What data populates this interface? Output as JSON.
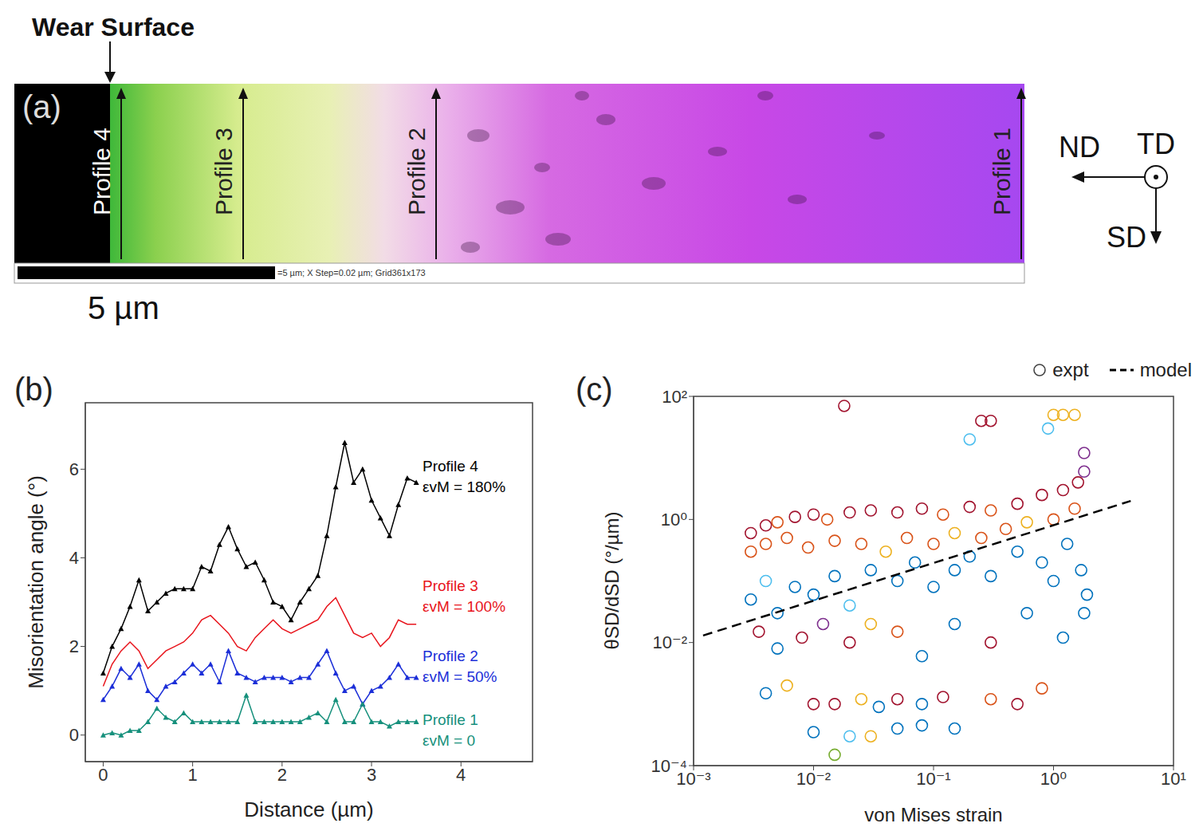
{
  "panel_a": {
    "label": "(a)",
    "title": "Wear Surface",
    "profiles": [
      "Profile 4",
      "Profile 3",
      "Profile 2",
      "Profile 1"
    ],
    "scale_bar": "5 µm",
    "scale_bar_note": "=5 µm; X Step=0.02 µm; Grid361x173",
    "directions": [
      "ND",
      "TD",
      "SD"
    ]
  },
  "chart_data": [
    {
      "panel": "(b)",
      "type": "line",
      "x_label": "Distance (µm)",
      "y_label": "Misorientation angle (°)",
      "x": [
        0,
        0.1,
        0.2,
        0.3,
        0.4,
        0.5,
        0.6,
        0.7,
        0.8,
        0.9,
        1.0,
        1.1,
        1.2,
        1.3,
        1.4,
        1.5,
        1.6,
        1.7,
        1.8,
        1.9,
        2.0,
        2.1,
        2.2,
        2.3,
        2.4,
        2.5,
        2.6,
        2.7,
        2.8,
        2.9,
        3.0,
        3.1,
        3.2,
        3.3,
        3.4,
        3.5
      ],
      "series": [
        {
          "name": "Profile 4",
          "annotation": "εvM = 180%",
          "color": "#000000",
          "marker": "triangle",
          "values": [
            1.4,
            2.0,
            2.4,
            2.9,
            3.5,
            2.8,
            3.0,
            3.2,
            3.3,
            3.3,
            3.3,
            3.8,
            3.7,
            4.3,
            4.7,
            4.2,
            3.8,
            3.9,
            3.5,
            3.0,
            2.9,
            2.6,
            3.0,
            3.3,
            3.6,
            4.5,
            5.6,
            6.6,
            5.7,
            6.0,
            5.3,
            4.9,
            4.5,
            5.2,
            5.8,
            5.7
          ]
        },
        {
          "name": "Profile 3",
          "annotation": "εvM = 100%",
          "color": "#e8141c",
          "marker": "none",
          "values": [
            1.1,
            1.6,
            1.9,
            2.1,
            1.9,
            1.5,
            1.7,
            1.9,
            2.0,
            2.1,
            2.3,
            2.6,
            2.7,
            2.5,
            2.3,
            2.0,
            1.9,
            2.2,
            2.4,
            2.6,
            2.4,
            2.3,
            2.4,
            2.5,
            2.6,
            2.9,
            3.1,
            2.7,
            2.3,
            2.2,
            2.3,
            2.0,
            2.2,
            2.6,
            2.5,
            2.5
          ]
        },
        {
          "name": "Profile 2",
          "annotation": "εvM = 50%",
          "color": "#1c2fd8",
          "marker": "triangle",
          "values": [
            0.8,
            1.1,
            1.5,
            1.3,
            1.6,
            1.0,
            0.8,
            1.1,
            1.2,
            1.4,
            1.6,
            1.4,
            1.6,
            1.2,
            1.9,
            1.4,
            1.3,
            1.2,
            1.3,
            1.3,
            1.3,
            1.2,
            1.3,
            1.3,
            1.6,
            1.9,
            1.4,
            1.0,
            1.1,
            0.7,
            1.0,
            1.1,
            1.3,
            1.6,
            1.3,
            1.3
          ]
        },
        {
          "name": "Profile 1",
          "annotation": "εvM = 0",
          "color": "#16907c",
          "marker": "triangle",
          "values": [
            0.0,
            0.05,
            0.0,
            0.1,
            0.1,
            0.3,
            0.6,
            0.4,
            0.3,
            0.5,
            0.3,
            0.3,
            0.3,
            0.3,
            0.3,
            0.3,
            0.9,
            0.3,
            0.3,
            0.3,
            0.3,
            0.3,
            0.3,
            0.4,
            0.5,
            0.3,
            0.8,
            0.3,
            0.3,
            0.7,
            0.3,
            0.3,
            0.2,
            0.3,
            0.3,
            0.3
          ]
        }
      ],
      "xlim": [
        -0.2,
        4.8
      ],
      "xticks": [
        0,
        1,
        2,
        3,
        4
      ],
      "ylim": [
        -0.6,
        7.5
      ],
      "yticks": [
        0,
        2,
        4,
        6
      ]
    },
    {
      "panel": "(c)",
      "type": "scatter",
      "log": true,
      "legend": "top right",
      "x_label": "von Mises strain",
      "y_label": "θSD/dSD (°/µm)",
      "series": [
        {
          "name": "expt",
          "type": "scatter",
          "marker": "circle",
          "x": [
            0.01,
            0.02,
            0.03,
            0.015,
            0.05,
            0.08,
            0.15,
            0.004,
            0.006,
            0.01,
            0.015,
            0.025,
            0.035,
            0.05,
            0.08,
            0.12,
            0.3,
            0.5,
            0.8,
            0.0035,
            0.005,
            0.008,
            0.012,
            0.02,
            0.03,
            0.05,
            0.08,
            0.15,
            0.3,
            0.6,
            1.2,
            1.8,
            0.003,
            0.004,
            0.005,
            0.007,
            0.01,
            0.015,
            0.02,
            0.03,
            0.05,
            0.07,
            0.1,
            0.15,
            0.2,
            0.3,
            0.5,
            0.8,
            1.0,
            1.3,
            1.7,
            1.9,
            0.003,
            0.004,
            0.006,
            0.009,
            0.015,
            0.025,
            0.04,
            0.06,
            0.1,
            0.15,
            0.25,
            0.4,
            0.6,
            1.0,
            1.5,
            0.003,
            0.004,
            0.005,
            0.007,
            0.01,
            0.013,
            0.02,
            0.03,
            0.05,
            0.08,
            0.12,
            0.2,
            0.3,
            0.5,
            0.8,
            1.2,
            1.6,
            1.8,
            0.018,
            0.25,
            0.3,
            0.2,
            0.9,
            1.0,
            1.2,
            1.5,
            1.8
          ],
          "values": [
            0.00035,
            0.0003,
            0.0003,
            0.00015,
            0.0004,
            0.00045,
            0.0004,
            0.0015,
            0.002,
            0.001,
            0.001,
            0.0012,
            0.0009,
            0.0012,
            0.001,
            0.0013,
            0.0012,
            0.001,
            0.0018,
            0.015,
            0.008,
            0.012,
            0.02,
            0.01,
            0.02,
            0.015,
            0.006,
            0.02,
            0.01,
            0.03,
            0.012,
            0.03,
            0.05,
            0.1,
            0.03,
            0.08,
            0.06,
            0.12,
            0.04,
            0.15,
            0.1,
            0.2,
            0.08,
            0.15,
            0.25,
            0.12,
            0.3,
            0.2,
            0.1,
            0.4,
            0.15,
            0.06,
            0.3,
            0.4,
            0.5,
            0.35,
            0.45,
            0.4,
            0.3,
            0.5,
            0.4,
            0.6,
            0.5,
            0.7,
            0.9,
            1.0,
            1.5,
            0.6,
            0.8,
            0.9,
            1.1,
            1.2,
            1.0,
            1.3,
            1.4,
            1.3,
            1.5,
            1.2,
            1.6,
            1.4,
            1.8,
            2.5,
            3.0,
            4.0,
            6.0,
            70,
            40,
            40,
            20,
            30,
            50,
            50,
            50,
            12
          ],
          "colors": [
            "#0072bd",
            "#4dbeee",
            "#edb120",
            "#77ac30",
            "#0072bd",
            "#0072bd",
            "#0072bd",
            "#0072bd",
            "#edb120",
            "#a2142f",
            "#a2142f",
            "#edb120",
            "#0072bd",
            "#a2142f",
            "#0072bd",
            "#a2142f",
            "#d95319",
            "#a2142f",
            "#d95319",
            "#a2142f",
            "#0072bd",
            "#a2142f",
            "#7e2f8e",
            "#a2142f",
            "#edb120",
            "#d95319",
            "#0072bd",
            "#0072bd",
            "#a2142f",
            "#0072bd",
            "#0072bd",
            "#0072bd",
            "#0072bd",
            "#4dbeee",
            "#0072bd",
            "#0072bd",
            "#0072bd",
            "#0072bd",
            "#4dbeee",
            "#0072bd",
            "#0072bd",
            "#0072bd",
            "#0072bd",
            "#0072bd",
            "#0072bd",
            "#0072bd",
            "#0072bd",
            "#0072bd",
            "#0072bd",
            "#0072bd",
            "#0072bd",
            "#0072bd",
            "#d95319",
            "#d95319",
            "#d95319",
            "#d95319",
            "#d95319",
            "#d95319",
            "#edb120",
            "#d95319",
            "#d95319",
            "#edb120",
            "#d95319",
            "#d95319",
            "#edb120",
            "#d95319",
            "#d95319",
            "#a2142f",
            "#a2142f",
            "#d95319",
            "#a2142f",
            "#a2142f",
            "#d95319",
            "#a2142f",
            "#a2142f",
            "#a2142f",
            "#a2142f",
            "#d95319",
            "#a2142f",
            "#d95319",
            "#a2142f",
            "#a2142f",
            "#a2142f",
            "#a2142f",
            "#7e2f8e",
            "#a2142f",
            "#a2142f",
            "#a2142f",
            "#4dbeee",
            "#4dbeee",
            "#edb120",
            "#edb120",
            "#edb120",
            "#7e2f8e"
          ]
        },
        {
          "name": "model",
          "type": "line",
          "line_style": "dashed",
          "color": "#000000",
          "x": [
            0.0012,
            4.4
          ],
          "values": [
            0.013,
            2.0
          ]
        }
      ],
      "xlim": [
        0.001,
        10
      ],
      "xticks": [
        {
          "value": 0.001,
          "label": "10⁻³"
        },
        {
          "value": 0.01,
          "label": "10⁻²"
        },
        {
          "value": 0.1,
          "label": "10⁻¹"
        },
        {
          "value": 1,
          "label": "10⁰"
        },
        {
          "value": 10,
          "label": "10¹"
        }
      ],
      "ylim": [
        0.0001,
        100
      ],
      "yticks": [
        {
          "value": 0.0001,
          "label": "10⁻⁴"
        },
        {
          "value": 0.01,
          "label": "10⁻²"
        },
        {
          "value": 1,
          "label": "10⁰"
        },
        {
          "value": 100,
          "label": "10²"
        }
      ]
    }
  ]
}
